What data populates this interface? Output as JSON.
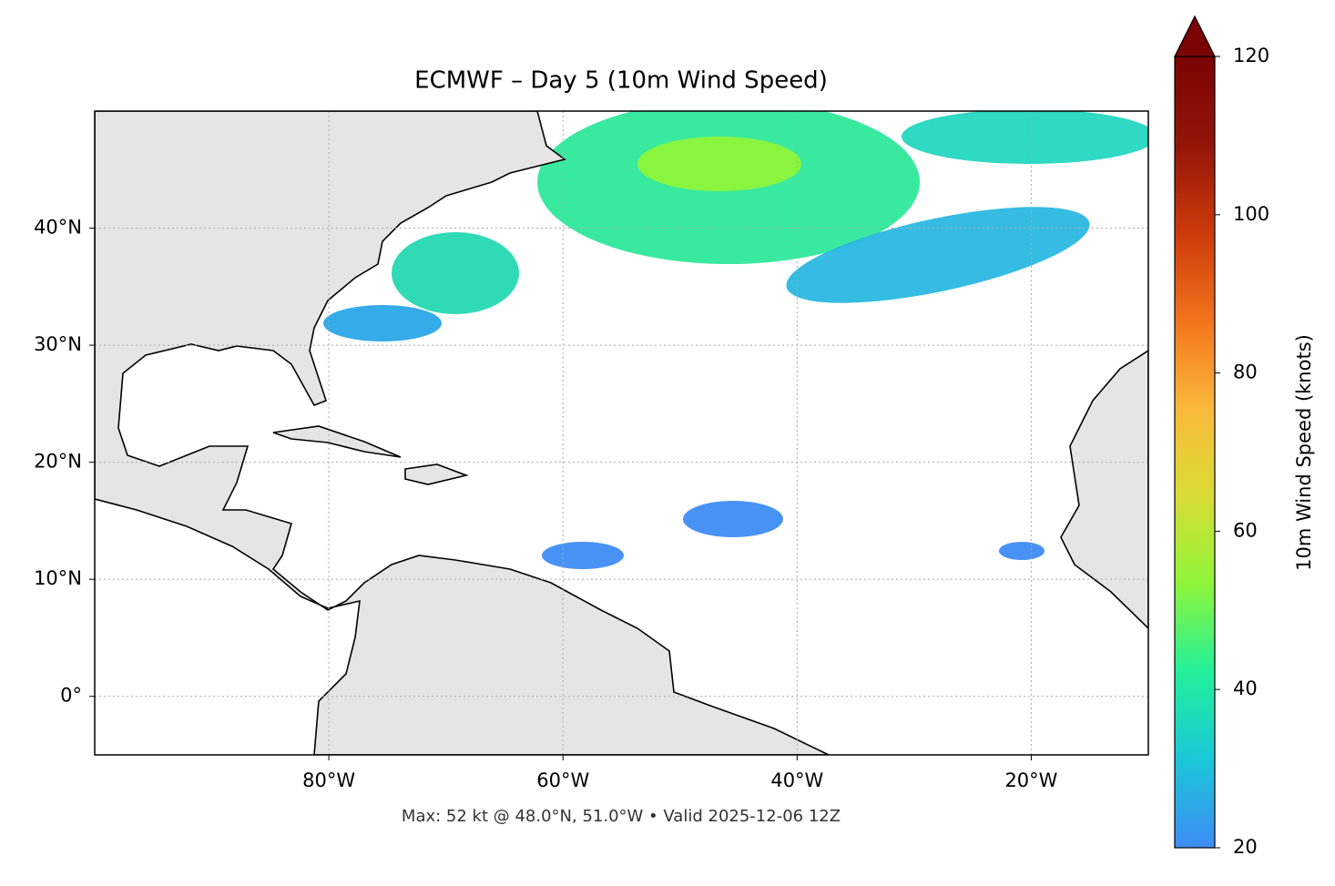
{
  "chart_data": {
    "type": "map",
    "title": "ECMWF – Day 5 (10m Wind Speed)",
    "footer": "Max: 52 kt @ 48.0°N, 51.0°W • Valid 2025-12-06 12Z",
    "xlim": [
      -100,
      -10
    ],
    "ylim": [
      -5,
      50
    ],
    "xticks": [
      {
        "value": -80,
        "label": "80°W"
      },
      {
        "value": -60,
        "label": "60°W"
      },
      {
        "value": -40,
        "label": "40°W"
      },
      {
        "value": -20,
        "label": "20°W"
      }
    ],
    "yticks": [
      {
        "value": 0,
        "label": "0°"
      },
      {
        "value": 10,
        "label": "10°N"
      },
      {
        "value": 20,
        "label": "20°N"
      },
      {
        "value": 30,
        "label": "30°N"
      },
      {
        "value": 40,
        "label": "40°N"
      }
    ],
    "grid": true,
    "colorbar": {
      "label": "10m Wind Speed (knots)",
      "lim": [
        20,
        120
      ],
      "ticks": [
        20,
        40,
        60,
        80,
        100,
        120
      ],
      "colors": [
        "#3e8cf5",
        "#1ac7d8",
        "#22f09a",
        "#8ef53a",
        "#d9dc36",
        "#fbb93a",
        "#f2731c",
        "#cc3a0b",
        "#931509",
        "#7a0403"
      ]
    }
  }
}
